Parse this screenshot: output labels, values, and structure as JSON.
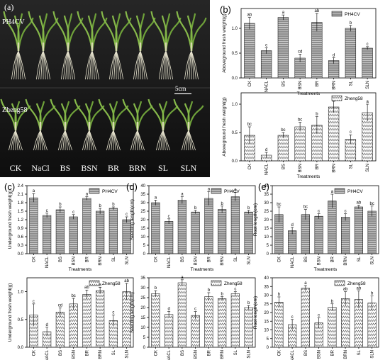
{
  "photo": {
    "panel_label": "(a)",
    "row1_label": "PH4CV",
    "row2_label": "Zheng58",
    "scale_label": "5cm",
    "treatments": [
      "CK",
      "NaCl",
      "BS",
      "BSN",
      "BR",
      "BRN",
      "SL",
      "SLN"
    ]
  },
  "chart_data": [
    {
      "id": "b1",
      "panel": "(b)",
      "type": "bar",
      "legend": "PH4CV",
      "ylabel": "Aboveground fresh weight(g)",
      "xlabel": "Treatments",
      "categories": [
        "CK",
        "NACL",
        "BS",
        "BSN",
        "BR",
        "BRN",
        "SL",
        "SLN"
      ],
      "values": [
        1.1,
        0.55,
        1.22,
        0.4,
        1.12,
        0.35,
        1.0,
        0.6
      ],
      "errors": [
        0.12,
        0.06,
        0.05,
        0.08,
        0.18,
        0.06,
        0.06,
        0.03
      ],
      "letters": [
        "ab",
        "c",
        "a",
        "cd",
        "ab",
        "d",
        "b",
        "c"
      ],
      "ylim": [
        0,
        1.4
      ],
      "yticks": [
        0,
        0.5,
        1.0
      ],
      "yfmt": 1
    },
    {
      "id": "b2",
      "panel": "",
      "type": "bar",
      "legend": "Zheng58",
      "ylabel": "Aboveground fresh weight(g)",
      "xlabel": "Treatments",
      "categories": [
        "CK",
        "NACL",
        "BS",
        "BSN",
        "BR",
        "BRN",
        "SL",
        "SLN"
      ],
      "values": [
        0.45,
        0.1,
        0.45,
        0.6,
        0.63,
        0.95,
        0.38,
        0.85
      ],
      "errors": [
        0.15,
        0.05,
        0.05,
        0.08,
        0.15,
        0.1,
        0.08,
        0.15
      ],
      "letters": [
        "bc",
        "d",
        "bc",
        "bc",
        "b",
        "a",
        "c",
        "a"
      ],
      "ylim": [
        0,
        1.2
      ],
      "yticks": [
        0,
        0.5,
        1.0
      ],
      "yfmt": 1
    },
    {
      "id": "c1",
      "panel": "(c)",
      "type": "bar",
      "legend": "PH4CV",
      "ylabel": "Underground fresh weight(g)",
      "xlabel": "Treatments",
      "categories": [
        "CK",
        "NACL",
        "BS",
        "BSN",
        "BR",
        "BRN",
        "SL",
        "SLN"
      ],
      "values": [
        1.97,
        1.35,
        1.55,
        1.3,
        1.95,
        1.5,
        1.6,
        1.2
      ],
      "errors": [
        0.15,
        0.08,
        0.1,
        0.08,
        0.06,
        0.1,
        0.05,
        0.1
      ],
      "letters": [
        "a",
        "c",
        "b",
        "c",
        "a",
        "b",
        "b",
        "c"
      ],
      "ylim": [
        0,
        2.4
      ],
      "yticks": [
        0,
        0.3,
        0.6,
        0.9,
        1.2,
        1.5,
        1.8,
        2.1,
        2.4
      ],
      "yfmt": 1
    },
    {
      "id": "c2",
      "panel": "",
      "type": "bar",
      "legend": "Zheng58",
      "ylabel": "Underground fresh weight(g)",
      "xlabel": "Treatments",
      "categories": [
        "CK",
        "NACL",
        "BS",
        "BSN",
        "BR",
        "BRN",
        "SL",
        "SLN"
      ],
      "values": [
        0.58,
        0.28,
        0.63,
        0.78,
        0.95,
        1.02,
        0.48,
        1.0
      ],
      "errors": [
        0.2,
        0.08,
        0.08,
        0.1,
        0.08,
        0.06,
        0.1,
        0.15
      ],
      "letters": [
        "c",
        "d",
        "cd",
        "bc",
        "ab",
        "a",
        "c",
        "ab"
      ],
      "ylim": [
        0,
        1.25
      ],
      "yticks": [
        0,
        0.5,
        1.0
      ],
      "yfmt": 1
    },
    {
      "id": "d1",
      "panel": "(d)",
      "type": "bar",
      "legend": "PH4CV",
      "ylabel": "Seedling length(cm)",
      "xlabel": "Treatments",
      "categories": [
        "CK",
        "NACL",
        "BS",
        "BSN",
        "BR",
        "BRN",
        "SL",
        "SLN"
      ],
      "values": [
        30,
        19,
        31.5,
        24.5,
        32.5,
        26,
        33.5,
        24.5
      ],
      "errors": [
        1.5,
        1.5,
        2,
        1,
        4,
        2,
        2.5,
        1
      ],
      "letters": [
        "a",
        "c",
        "a",
        "b",
        "a",
        "b",
        "a",
        "b"
      ],
      "ylim": [
        0,
        40
      ],
      "yticks": [
        0,
        5,
        10,
        15,
        20,
        25,
        30,
        35,
        40
      ],
      "yfmt": 0
    },
    {
      "id": "d2",
      "panel": "",
      "type": "bar",
      "legend": "Zheng58",
      "ylabel": "Seedling length(cm)",
      "xlabel": "Treatments",
      "categories": [
        "CK",
        "NACL",
        "BS",
        "BSN",
        "BR",
        "BRN",
        "SL",
        "SLN"
      ],
      "values": [
        27,
        16.5,
        32.5,
        16,
        25.5,
        24.5,
        27,
        20
      ],
      "errors": [
        1.5,
        1.5,
        1.5,
        2,
        2,
        1,
        1,
        1
      ],
      "letters": [
        "b",
        "d",
        "a",
        "c",
        "b",
        "b",
        "c",
        "b"
      ],
      "ylim": [
        0,
        35
      ],
      "yticks": [
        0,
        5,
        10,
        15,
        20,
        25,
        30,
        35
      ],
      "yfmt": 0
    },
    {
      "id": "e1",
      "panel": "(e)",
      "type": "bar",
      "legend": "PH4CV",
      "ylabel": "Root length(cm)",
      "xlabel": "Treatments",
      "categories": [
        "CK",
        "NACL",
        "BS",
        "BSN",
        "BR",
        "BRN",
        "SL",
        "SLN"
      ],
      "values": [
        23,
        13.5,
        23,
        22,
        31,
        21.5,
        27.5,
        25
      ],
      "errors": [
        4.5,
        2,
        3,
        1.5,
        4,
        2,
        1,
        3
      ],
      "letters": [
        "bc",
        "d",
        "bc",
        "c",
        "a",
        "c",
        "ab",
        "bc"
      ],
      "ylim": [
        0,
        40
      ],
      "yticks": [
        0,
        5,
        10,
        15,
        20,
        25,
        30,
        35,
        40
      ],
      "yfmt": 0
    },
    {
      "id": "e2",
      "panel": "",
      "type": "bar",
      "legend": "Zheng58",
      "ylabel": "Root length(cm)",
      "xlabel": "Treatments",
      "categories": [
        "CK",
        "NACL",
        "BS",
        "BSN",
        "BR",
        "BRN",
        "SL",
        "SLN"
      ],
      "values": [
        26,
        13,
        34,
        14,
        23,
        28,
        27.5,
        25.5
      ],
      "errors": [
        3,
        3,
        1.5,
        3,
        2,
        4,
        5,
        4
      ],
      "letters": [
        "b",
        "c",
        "a",
        "c",
        "b",
        "ab",
        "ab",
        "b"
      ],
      "ylim": [
        0,
        40
      ],
      "yticks": [
        0,
        5,
        10,
        15,
        20,
        25,
        30,
        35,
        40
      ],
      "yfmt": 0
    }
  ]
}
